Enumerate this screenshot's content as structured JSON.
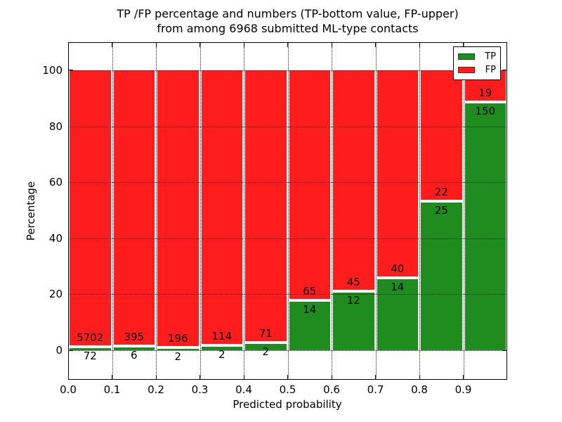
{
  "title": {
    "line1": "TP /FP percentage and numbers (TP-bottom value, FP-upper)",
    "line2": "from among 6968 submitted ML-type contacts"
  },
  "axes": {
    "x_label": "Predicted probability",
    "y_label": "Percentage",
    "x_ticks": [
      "0.0",
      "0.1",
      "0.2",
      "0.3",
      "0.4",
      "0.5",
      "0.6",
      "0.7",
      "0.8",
      "0.9"
    ],
    "y_ticks": [
      "0",
      "20",
      "40",
      "60",
      "80",
      "100"
    ]
  },
  "legend": {
    "items": [
      {
        "label": "TP",
        "color": "#1f8c1f"
      },
      {
        "label": "FP",
        "color": "#ff1c1c"
      }
    ]
  },
  "colors": {
    "tp_green": "#1f8c1f",
    "fp_red": "#ff1c1c",
    "bar_edge": "#ffffff",
    "grid": "#000000"
  },
  "chart_data": {
    "type": "bar",
    "stacked": true,
    "normalized": "each bar totals 100%",
    "title": "TP /FP percentage and numbers (TP-bottom value, FP-upper) from among 6968 submitted ML-type contacts",
    "xlabel": "Predicted probability",
    "ylabel": "Percentage",
    "xlim": [
      0.0,
      1.0
    ],
    "ylim": [
      -10.5,
      110.5
    ],
    "bin_width": 0.1,
    "grid": true,
    "legend_position": "upper right",
    "total_contacts": 6968,
    "categories": [
      "0.0-0.1",
      "0.1-0.2",
      "0.2-0.3",
      "0.3-0.4",
      "0.4-0.5",
      "0.5-0.6",
      "0.6-0.7",
      "0.7-0.8",
      "0.8-0.9",
      "0.9-1.0"
    ],
    "series": [
      {
        "name": "TP",
        "color": "#1f8c1f",
        "counts": [
          72,
          6,
          2,
          2,
          2,
          14,
          12,
          14,
          25,
          150
        ]
      },
      {
        "name": "FP",
        "color": "#ff1c1c",
        "counts": [
          5702,
          395,
          196,
          114,
          71,
          65,
          45,
          40,
          22,
          19
        ]
      }
    ],
    "bins": [
      {
        "x_start": 0.0,
        "x_end": 0.1,
        "tp_count": 72,
        "fp_count": 5702,
        "tp_pct": 1.2,
        "fp_pct": 98.8
      },
      {
        "x_start": 0.1,
        "x_end": 0.2,
        "tp_count": 6,
        "fp_count": 395,
        "tp_pct": 1.5,
        "fp_pct": 98.5
      },
      {
        "x_start": 0.2,
        "x_end": 0.3,
        "tp_count": 2,
        "fp_count": 196,
        "tp_pct": 1.0,
        "fp_pct": 99.0
      },
      {
        "x_start": 0.3,
        "x_end": 0.4,
        "tp_count": 2,
        "fp_count": 114,
        "tp_pct": 1.7,
        "fp_pct": 98.3
      },
      {
        "x_start": 0.4,
        "x_end": 0.5,
        "tp_count": 2,
        "fp_count": 71,
        "tp_pct": 2.7,
        "fp_pct": 97.3
      },
      {
        "x_start": 0.5,
        "x_end": 0.6,
        "tp_count": 14,
        "fp_count": 65,
        "tp_pct": 17.7,
        "fp_pct": 82.3
      },
      {
        "x_start": 0.6,
        "x_end": 0.7,
        "tp_count": 12,
        "fp_count": 45,
        "tp_pct": 21.1,
        "fp_pct": 78.9
      },
      {
        "x_start": 0.7,
        "x_end": 0.8,
        "tp_count": 14,
        "fp_count": 40,
        "tp_pct": 25.9,
        "fp_pct": 74.1
      },
      {
        "x_start": 0.8,
        "x_end": 0.9,
        "tp_count": 25,
        "fp_count": 22,
        "tp_pct": 53.2,
        "fp_pct": 46.8
      },
      {
        "x_start": 0.9,
        "x_end": 1.0,
        "tp_count": 150,
        "fp_count": 19,
        "tp_pct": 88.8,
        "fp_pct": 11.2
      }
    ]
  }
}
